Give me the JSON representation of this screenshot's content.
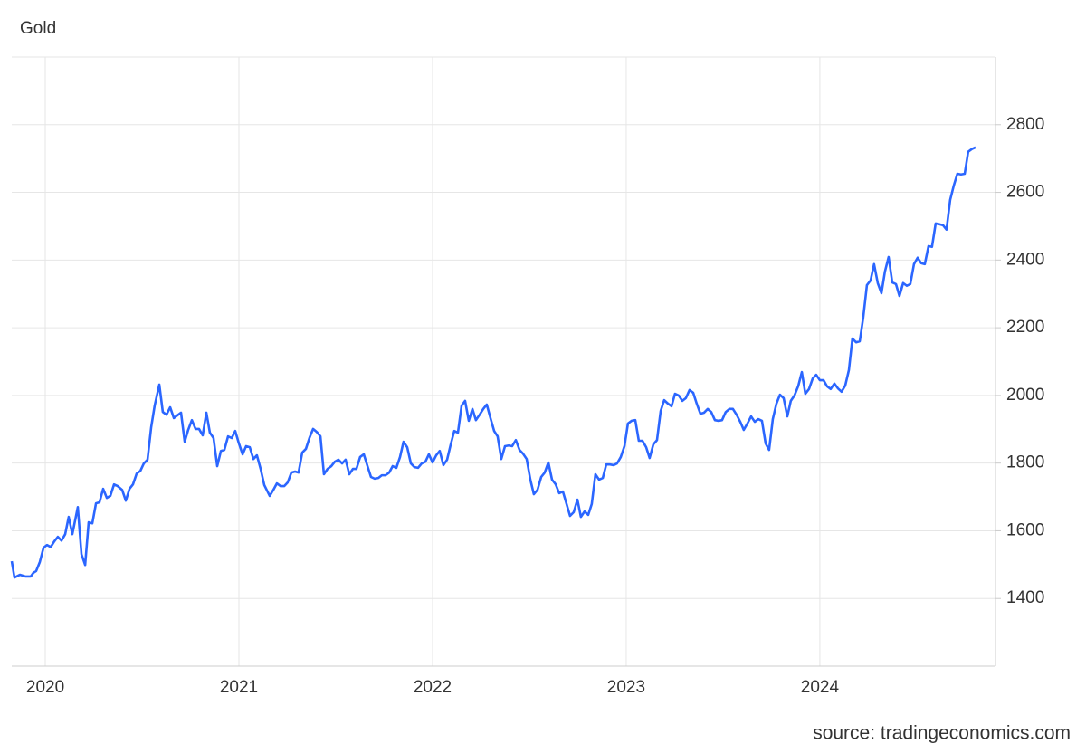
{
  "chart_data": {
    "type": "line",
    "title": "Gold",
    "source": "source: tradingeconomics.com",
    "color": "#2b66ff",
    "grid": true,
    "xlim": [
      2019.827,
      2024.907
    ],
    "xticks": [
      2020,
      2021,
      2022,
      2023,
      2024
    ],
    "ylim": [
      1200,
      3000
    ],
    "yticks": [
      1400,
      1600,
      1800,
      2000,
      2200,
      2400,
      2600,
      2800
    ],
    "x": [
      2019.827,
      2019.841,
      2019.869,
      2019.897,
      2019.925,
      2019.939,
      2019.953,
      2019.972,
      2019.991,
      2020.009,
      2020.028,
      2020.047,
      2020.065,
      2020.084,
      2020.103,
      2020.121,
      2020.14,
      2020.168,
      2020.187,
      2020.206,
      2020.224,
      2020.243,
      2020.262,
      2020.28,
      2020.299,
      2020.318,
      2020.336,
      2020.355,
      2020.374,
      2020.397,
      2020.416,
      2020.435,
      2020.453,
      2020.472,
      2020.491,
      2020.509,
      2020.528,
      2020.547,
      2020.565,
      2020.589,
      2020.607,
      2020.626,
      2020.645,
      2020.664,
      2020.682,
      2020.701,
      2020.72,
      2020.738,
      2020.757,
      2020.776,
      2020.794,
      2020.813,
      2020.832,
      2020.85,
      2020.869,
      2020.888,
      2020.907,
      2020.925,
      2020.944,
      2020.963,
      2020.981,
      2021.0,
      2021.019,
      2021.037,
      2021.056,
      2021.075,
      2021.093,
      2021.112,
      2021.131,
      2021.159,
      2021.178,
      2021.196,
      2021.215,
      2021.234,
      2021.252,
      2021.271,
      2021.29,
      2021.308,
      2021.327,
      2021.346,
      2021.364,
      2021.383,
      2021.402,
      2021.421,
      2021.439,
      2021.458,
      2021.477,
      2021.495,
      2021.514,
      2021.533,
      2021.551,
      2021.57,
      2021.589,
      2021.607,
      2021.626,
      2021.645,
      2021.664,
      2021.682,
      2021.701,
      2021.72,
      2021.738,
      2021.757,
      2021.776,
      2021.794,
      2021.813,
      2021.832,
      2021.85,
      2021.869,
      2021.888,
      2021.907,
      2021.925,
      2021.944,
      2021.963,
      2021.981,
      2022.0,
      2022.019,
      2022.037,
      2022.056,
      2022.075,
      2022.093,
      2022.112,
      2022.131,
      2022.15,
      2022.168,
      2022.187,
      2022.206,
      2022.224,
      2022.243,
      2022.262,
      2022.28,
      2022.299,
      2022.318,
      2022.336,
      2022.355,
      2022.374,
      2022.393,
      2022.411,
      2022.43,
      2022.449,
      2022.467,
      2022.486,
      2022.505,
      2022.523,
      2022.542,
      2022.561,
      2022.579,
      2022.598,
      2022.617,
      2022.636,
      2022.654,
      2022.673,
      2022.692,
      2022.71,
      2022.729,
      2022.748,
      2022.766,
      2022.785,
      2022.804,
      2022.822,
      2022.841,
      2022.86,
      2022.879,
      2022.897,
      2022.916,
      2022.935,
      2022.953,
      2022.972,
      2022.991,
      2023.009,
      2023.028,
      2023.047,
      2023.065,
      2023.084,
      2023.103,
      2023.121,
      2023.14,
      2023.159,
      2023.178,
      2023.196,
      2023.215,
      2023.234,
      2023.252,
      2023.271,
      2023.29,
      2023.308,
      2023.327,
      2023.346,
      2023.364,
      2023.383,
      2023.402,
      2023.421,
      2023.439,
      2023.458,
      2023.477,
      2023.495,
      2023.514,
      2023.533,
      2023.551,
      2023.57,
      2023.589,
      2023.607,
      2023.626,
      2023.645,
      2023.664,
      2023.682,
      2023.701,
      2023.72,
      2023.738,
      2023.757,
      2023.776,
      2023.794,
      2023.813,
      2023.832,
      2023.85,
      2023.869,
      2023.888,
      2023.907,
      2023.925,
      2023.944,
      2023.963,
      2023.981,
      2024.0,
      2024.019,
      2024.037,
      2024.056,
      2024.075,
      2024.093,
      2024.112,
      2024.131,
      2024.15,
      2024.168,
      2024.187,
      2024.206,
      2024.224,
      2024.243,
      2024.262,
      2024.28,
      2024.299,
      2024.318,
      2024.336,
      2024.355,
      2024.374,
      2024.393,
      2024.411,
      2024.43,
      2024.449,
      2024.467,
      2024.486,
      2024.505,
      2024.523,
      2024.542,
      2024.561,
      2024.579,
      2024.598,
      2024.617,
      2024.636,
      2024.654,
      2024.673,
      2024.692,
      2024.71,
      2024.729,
      2024.748,
      2024.766,
      2024.785,
      2024.804
    ],
    "values": [
      1510,
      1462,
      1470,
      1465,
      1465,
      1476,
      1481,
      1508,
      1550,
      1558,
      1552,
      1569,
      1582,
      1571,
      1590,
      1641,
      1590,
      1670,
      1531,
      1499,
      1625,
      1622,
      1681,
      1684,
      1724,
      1697,
      1703,
      1737,
      1732,
      1721,
      1689,
      1724,
      1737,
      1769,
      1777,
      1799,
      1810,
      1906,
      1970,
      2032,
      1951,
      1943,
      1965,
      1933,
      1941,
      1949,
      1863,
      1898,
      1927,
      1901,
      1901,
      1882,
      1949,
      1890,
      1874,
      1791,
      1836,
      1839,
      1879,
      1874,
      1895,
      1858,
      1826,
      1850,
      1847,
      1812,
      1823,
      1783,
      1735,
      1703,
      1721,
      1740,
      1732,
      1732,
      1743,
      1772,
      1775,
      1772,
      1831,
      1842,
      1874,
      1901,
      1892,
      1879,
      1767,
      1783,
      1791,
      1804,
      1810,
      1799,
      1810,
      1767,
      1783,
      1783,
      1818,
      1826,
      1791,
      1759,
      1754,
      1756,
      1764,
      1764,
      1772,
      1791,
      1786,
      1818,
      1863,
      1847,
      1799,
      1788,
      1786,
      1799,
      1804,
      1826,
      1802,
      1823,
      1836,
      1794,
      1810,
      1853,
      1895,
      1890,
      1970,
      1984,
      1925,
      1960,
      1927,
      1943,
      1960,
      1973,
      1933,
      1895,
      1879,
      1812,
      1850,
      1852,
      1850,
      1868,
      1839,
      1828,
      1812,
      1751,
      1708,
      1721,
      1759,
      1772,
      1802,
      1751,
      1737,
      1711,
      1716,
      1679,
      1644,
      1655,
      1692,
      1641,
      1657,
      1647,
      1679,
      1767,
      1751,
      1756,
      1796,
      1796,
      1794,
      1799,
      1818,
      1850,
      1917,
      1925,
      1927,
      1866,
      1866,
      1847,
      1815,
      1855,
      1868,
      1954,
      1986,
      1976,
      1968,
      2005,
      2000,
      1984,
      1992,
      2016,
      2008,
      1976,
      1946,
      1949,
      1960,
      1951,
      1927,
      1925,
      1927,
      1951,
      1960,
      1960,
      1943,
      1922,
      1898,
      1917,
      1938,
      1922,
      1930,
      1925,
      1858,
      1839,
      1930,
      1976,
      2002,
      1992,
      1938,
      1984,
      2000,
      2027,
      2069,
      2005,
      2019,
      2050,
      2061,
      2045,
      2045,
      2027,
      2019,
      2035,
      2021,
      2011,
      2029,
      2075,
      2168,
      2157,
      2160,
      2230,
      2326,
      2340,
      2388,
      2332,
      2302,
      2366,
      2409,
      2334,
      2329,
      2294,
      2332,
      2324,
      2329,
      2388,
      2407,
      2391,
      2388,
      2441,
      2439,
      2508,
      2506,
      2503,
      2490,
      2578,
      2621,
      2655,
      2653,
      2655,
      2720,
      2728,
      2733
    ]
  }
}
